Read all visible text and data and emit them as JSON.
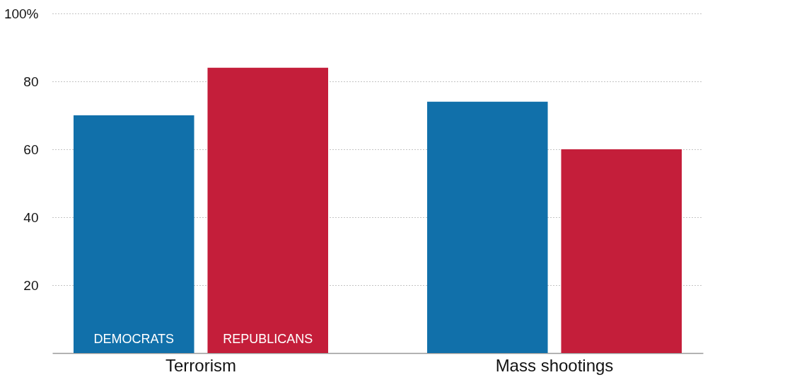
{
  "chart_data": {
    "type": "bar",
    "categories": [
      "Terrorism",
      "Mass shootings"
    ],
    "series": [
      {
        "name": "DEMOCRATS",
        "color": "#1170aa",
        "values": [
          70,
          74
        ]
      },
      {
        "name": "REPUBLICANS",
        "color": "#c41e3a",
        "values": [
          84,
          60
        ]
      }
    ],
    "ylim": [
      0,
      100
    ],
    "yticks": [
      20,
      40,
      60,
      80,
      {
        "value": 100,
        "label": "100%"
      }
    ],
    "grid": "y",
    "legend": false
  }
}
